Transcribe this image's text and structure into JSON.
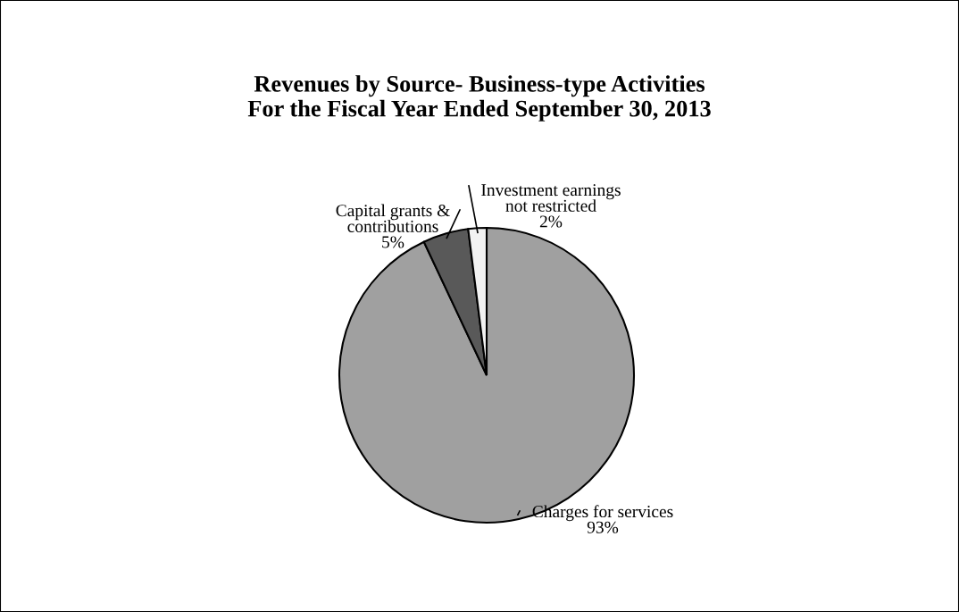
{
  "chart_data": {
    "type": "pie",
    "title": "Revenues by Source- Business-type Activities\nFor the Fiscal Year Ended September 30, 2013",
    "categories": [
      "Charges for services",
      "Capital grants &\ncontributions",
      "Investment earnings\nnot restricted"
    ],
    "values": [
      93,
      5,
      2
    ],
    "colors": [
      "#a0a0a0",
      "#595959",
      "#f2f2f2"
    ],
    "value_labels": [
      "93%",
      "5%",
      "2%"
    ]
  }
}
